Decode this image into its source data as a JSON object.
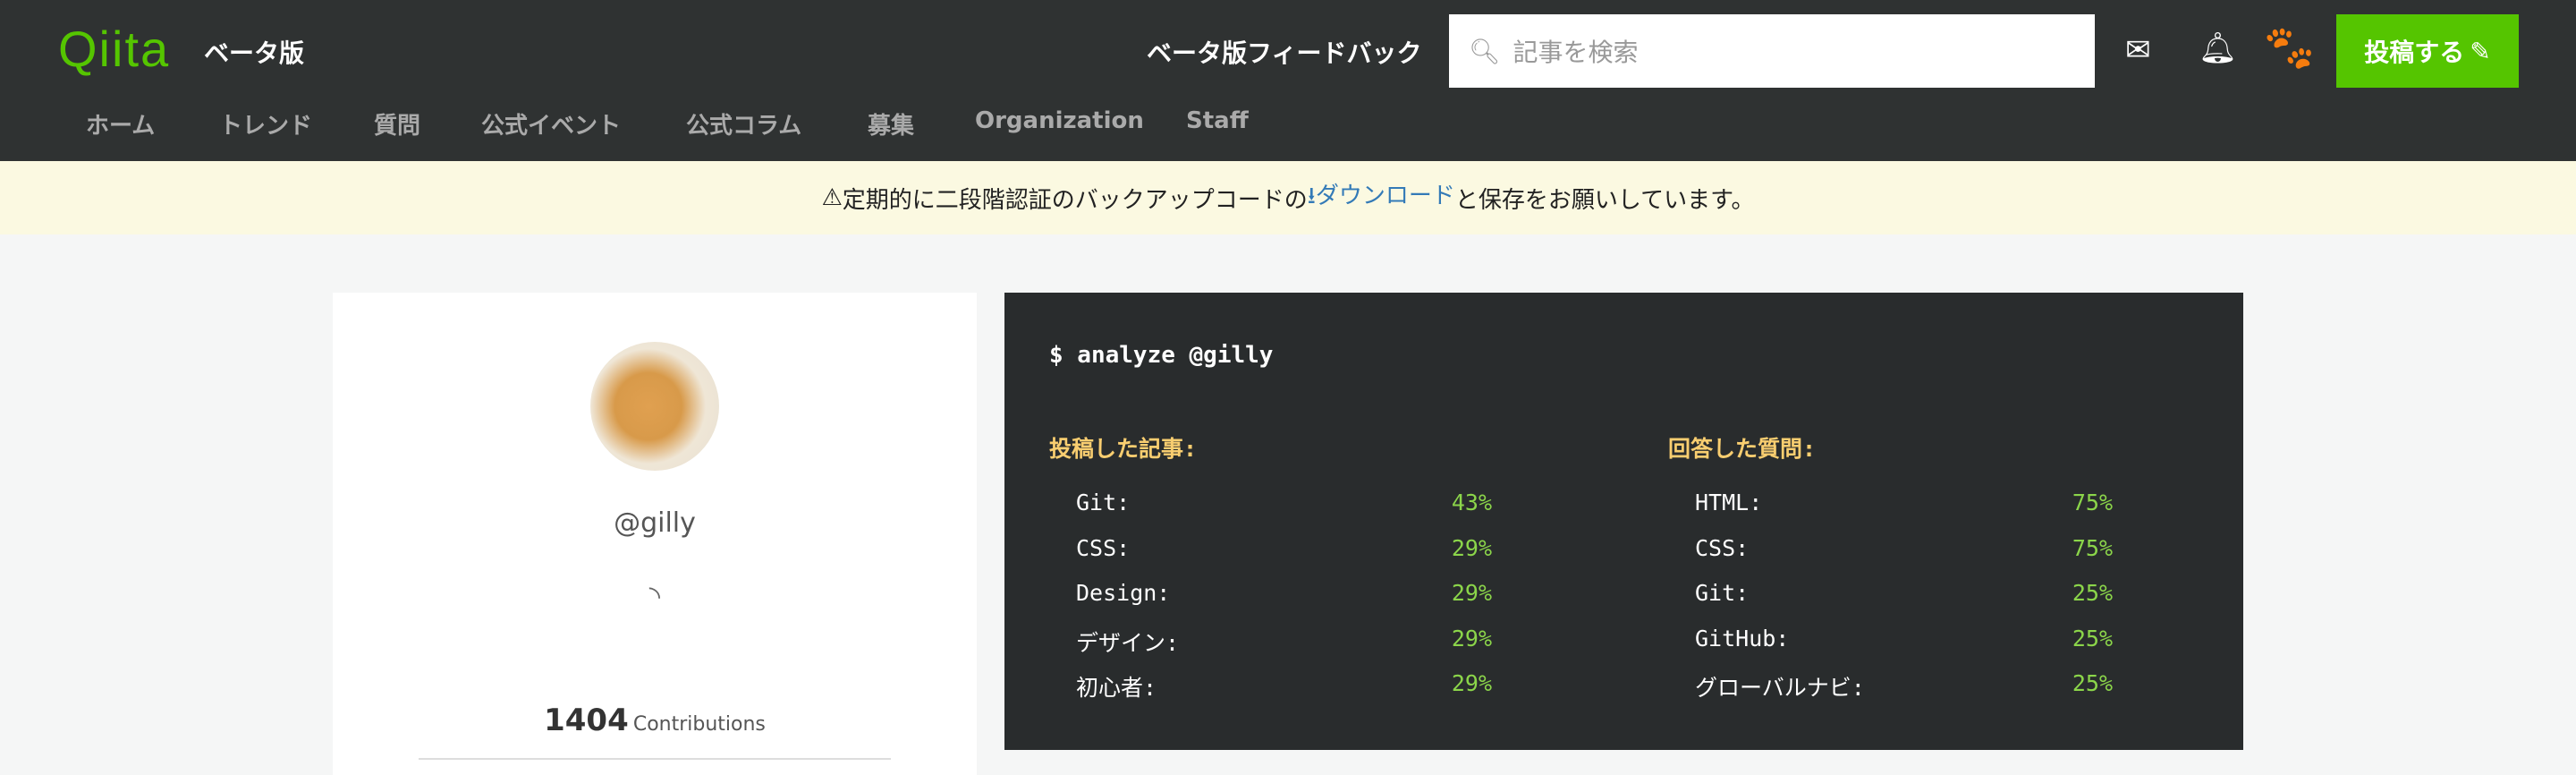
{
  "header": {
    "logo": "Qiita",
    "beta": "ベータ版",
    "feedback": "ベータ版フィードバック",
    "search_placeholder": "記事を検索",
    "post_label": "投稿する",
    "brand_color": "#55c500"
  },
  "nav": [
    "ホーム",
    "トレンド",
    "質問",
    "公式イベント",
    "公式コラム",
    "募集",
    "Organization",
    "Staff"
  ],
  "banner": {
    "before": "定期的に二段階認証のバックアップコードの",
    "link": "ダウンロード",
    "after": "と保存をお願いしています。"
  },
  "profile": {
    "username": "@gilly",
    "contributions": "1404",
    "contributions_label": "Contributions"
  },
  "terminal": {
    "command": "$ analyze @gilly",
    "articles": {
      "title": "投稿した記事:",
      "items": [
        {
          "label": "Git:",
          "pct": "43%"
        },
        {
          "label": "CSS:",
          "pct": "29%"
        },
        {
          "label": "Design:",
          "pct": "29%"
        },
        {
          "label": "デザイン:",
          "pct": "29%"
        },
        {
          "label": "初心者:",
          "pct": "29%"
        }
      ]
    },
    "answers": {
      "title": "回答した質問:",
      "items": [
        {
          "label": "HTML:",
          "pct": "75%"
        },
        {
          "label": "CSS:",
          "pct": "75%"
        },
        {
          "label": "Git:",
          "pct": "25%"
        },
        {
          "label": "GitHub:",
          "pct": "25%"
        },
        {
          "label": "グローバルナビ:",
          "pct": "25%"
        }
      ]
    }
  }
}
